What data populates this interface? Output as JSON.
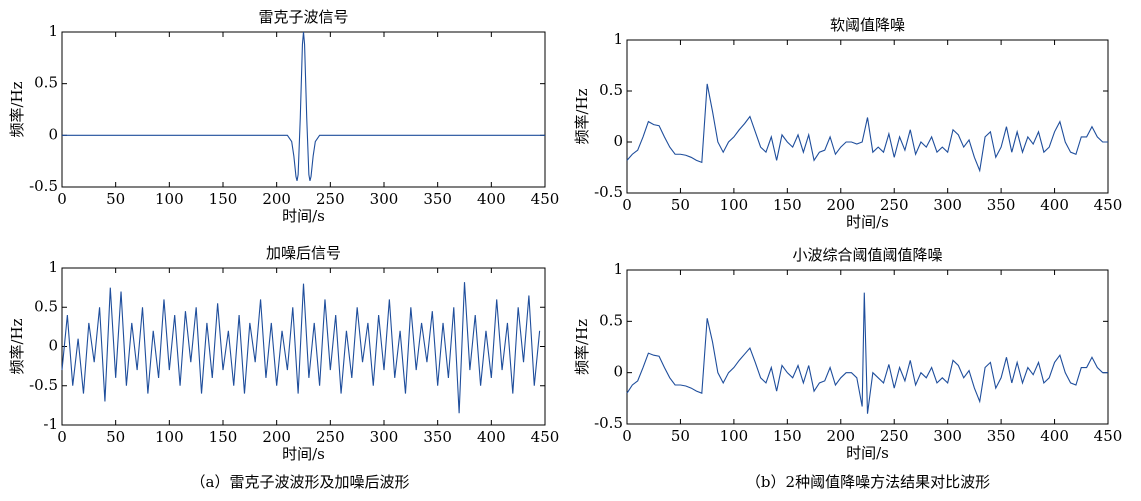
{
  "chart_data": [
    {
      "type": "line",
      "title": "雷克子波信号",
      "x_label": "时间/s",
      "y_label": "频率/Hz",
      "x": [
        0,
        200,
        210,
        214,
        216,
        218,
        219,
        220,
        222,
        224,
        225,
        226,
        228,
        230,
        231,
        232,
        234,
        236,
        240,
        250,
        450
      ],
      "series": [
        {
          "color": "#1f4e9c",
          "values": [
            0,
            0,
            0,
            -0.06,
            -0.2,
            -0.4,
            -0.44,
            -0.38,
            0.17,
            0.88,
            1,
            0.88,
            0.17,
            -0.38,
            -0.44,
            -0.4,
            -0.2,
            -0.06,
            0,
            0,
            0
          ]
        }
      ],
      "xlim": [
        0,
        450
      ],
      "ylim": [
        -0.5,
        1
      ],
      "xticks": [
        0,
        50,
        100,
        150,
        200,
        250,
        300,
        350,
        400,
        450
      ],
      "yticks": [
        -0.5,
        0,
        0.5,
        1
      ]
    },
    {
      "type": "line",
      "title": "加噪后信号",
      "x_label": "时间/s",
      "y_label": "频率/Hz",
      "x": [
        0,
        5,
        10,
        15,
        20,
        25,
        30,
        35,
        40,
        45,
        50,
        55,
        60,
        65,
        70,
        75,
        80,
        85,
        90,
        95,
        100,
        105,
        110,
        115,
        120,
        125,
        130,
        135,
        140,
        145,
        150,
        155,
        160,
        165,
        170,
        175,
        180,
        185,
        190,
        195,
        200,
        205,
        210,
        215,
        220,
        225,
        230,
        235,
        240,
        245,
        250,
        255,
        260,
        265,
        270,
        275,
        280,
        285,
        290,
        295,
        300,
        305,
        310,
        315,
        320,
        325,
        330,
        335,
        340,
        345,
        350,
        355,
        360,
        365,
        370,
        375,
        380,
        385,
        390,
        395,
        400,
        405,
        410,
        415,
        420,
        425,
        430,
        435,
        440,
        445
      ],
      "series": [
        {
          "color": "#1f4e9c",
          "values": [
            -0.3,
            0.4,
            -0.5,
            0.1,
            -0.6,
            0.3,
            -0.2,
            0.5,
            -0.7,
            0.75,
            -0.4,
            0.7,
            -0.5,
            0.3,
            -0.3,
            0.5,
            -0.6,
            0.2,
            -0.4,
            0.6,
            -0.3,
            0.4,
            -0.5,
            0.45,
            -0.2,
            0.5,
            -0.6,
            0.3,
            -0.4,
            0.55,
            -0.3,
            0.2,
            -0.5,
            0.4,
            -0.6,
            0.3,
            -0.2,
            0.6,
            -0.4,
            0.3,
            -0.5,
            0.2,
            -0.3,
            0.5,
            -0.6,
            0.8,
            -0.4,
            0.3,
            -0.5,
            0.6,
            -0.3,
            0.4,
            -0.6,
            0.2,
            -0.4,
            0.5,
            -0.2,
            0.3,
            -0.5,
            0.4,
            -0.3,
            0.6,
            -0.4,
            0.2,
            -0.6,
            0.5,
            -0.3,
            0.3,
            -0.2,
            0.45,
            -0.5,
            0.3,
            -0.4,
            0.5,
            -0.85,
            0.82,
            -0.3,
            0.4,
            -0.5,
            0.2,
            -0.4,
            0.6,
            -0.3,
            0.3,
            -0.6,
            0.5,
            -0.2,
            0.65,
            -0.5,
            0.2
          ]
        }
      ],
      "xlim": [
        0,
        450
      ],
      "ylim": [
        -1,
        1
      ],
      "xticks": [
        0,
        50,
        100,
        150,
        200,
        250,
        300,
        350,
        400,
        450
      ],
      "yticks": [
        -1,
        -0.5,
        0,
        0.5,
        1
      ]
    },
    {
      "type": "line",
      "title": "软阈值降噪",
      "x_label": "时间/s",
      "y_label": "频率/Hz",
      "x": [
        0,
        5,
        10,
        15,
        20,
        25,
        30,
        35,
        40,
        45,
        50,
        55,
        60,
        65,
        70,
        75,
        80,
        85,
        90,
        95,
        100,
        105,
        110,
        115,
        120,
        125,
        130,
        135,
        140,
        145,
        150,
        155,
        160,
        165,
        170,
        175,
        180,
        185,
        190,
        195,
        200,
        205,
        210,
        215,
        220,
        225,
        230,
        235,
        240,
        245,
        250,
        255,
        260,
        265,
        270,
        275,
        280,
        285,
        290,
        295,
        300,
        305,
        310,
        315,
        320,
        325,
        330,
        335,
        340,
        345,
        350,
        355,
        360,
        365,
        370,
        375,
        380,
        385,
        390,
        395,
        400,
        405,
        410,
        415,
        420,
        425,
        430,
        435,
        440,
        445,
        450
      ],
      "series": [
        {
          "color": "#1f4e9c",
          "values": [
            -0.18,
            -0.12,
            -0.08,
            0.05,
            0.2,
            0.17,
            0.16,
            0.05,
            -0.05,
            -0.12,
            -0.12,
            -0.13,
            -0.15,
            -0.18,
            -0.2,
            0.57,
            0.3,
            0,
            -0.1,
            0,
            0.05,
            0.12,
            0.18,
            0.25,
            0.1,
            -0.05,
            -0.1,
            0.05,
            -0.18,
            0.07,
            0,
            -0.05,
            0.07,
            -0.1,
            0.07,
            -0.18,
            -0.1,
            -0.08,
            0.05,
            -0.12,
            -0.05,
            0,
            0,
            -0.02,
            0,
            0.24,
            -0.1,
            -0.05,
            -0.1,
            0.08,
            -0.15,
            0.05,
            -0.08,
            0.12,
            -0.12,
            0,
            -0.05,
            0.05,
            -0.1,
            -0.05,
            -0.1,
            0.12,
            0.07,
            -0.05,
            0.02,
            -0.15,
            -0.28,
            0.05,
            0.1,
            -0.15,
            -0.05,
            0.15,
            -0.1,
            0.1,
            -0.1,
            0.05,
            -0.02,
            0.1,
            -0.1,
            -0.05,
            0.1,
            0.2,
            0,
            -0.1,
            -0.12,
            0.05,
            0.05,
            0.15,
            0.05,
            0,
            0
          ]
        }
      ],
      "xlim": [
        0,
        450
      ],
      "ylim": [
        -0.5,
        1
      ],
      "xticks": [
        0,
        50,
        100,
        150,
        200,
        250,
        300,
        350,
        400,
        450
      ],
      "yticks": [
        -0.5,
        0,
        0.5,
        1
      ]
    },
    {
      "type": "line",
      "title": "小波综合阈值阈值降噪",
      "x_label": "时间/s",
      "y_label": "频率/Hz",
      "x": [
        0,
        5,
        10,
        15,
        20,
        25,
        30,
        35,
        40,
        45,
        50,
        55,
        60,
        65,
        70,
        75,
        80,
        85,
        90,
        95,
        100,
        105,
        110,
        115,
        120,
        125,
        130,
        135,
        140,
        145,
        150,
        155,
        160,
        165,
        170,
        175,
        180,
        185,
        190,
        195,
        200,
        205,
        210,
        215,
        220,
        222,
        225,
        230,
        235,
        240,
        245,
        250,
        255,
        260,
        265,
        270,
        275,
        280,
        285,
        290,
        295,
        300,
        305,
        310,
        315,
        320,
        325,
        330,
        335,
        340,
        345,
        350,
        355,
        360,
        365,
        370,
        375,
        380,
        385,
        390,
        395,
        400,
        405,
        410,
        415,
        420,
        425,
        430,
        435,
        440,
        445,
        450
      ],
      "series": [
        {
          "color": "#1f4e9c",
          "values": [
            -0.2,
            -0.12,
            -0.08,
            0.05,
            0.19,
            0.17,
            0.16,
            0.05,
            -0.05,
            -0.12,
            -0.12,
            -0.13,
            -0.15,
            -0.18,
            -0.2,
            0.53,
            0.3,
            0,
            -0.1,
            0,
            0.05,
            0.12,
            0.18,
            0.24,
            0.1,
            -0.05,
            -0.1,
            0.05,
            -0.18,
            0.07,
            0,
            -0.05,
            0.07,
            -0.1,
            0.07,
            -0.18,
            -0.1,
            -0.08,
            0.05,
            -0.12,
            -0.05,
            0,
            0,
            -0.05,
            -0.33,
            0.78,
            -0.4,
            0,
            -0.05,
            -0.1,
            0.08,
            -0.15,
            0.05,
            -0.08,
            0.12,
            -0.12,
            0,
            -0.05,
            0.05,
            -0.1,
            -0.05,
            -0.1,
            0.12,
            0.07,
            -0.05,
            0.02,
            -0.15,
            -0.28,
            0.05,
            0.1,
            -0.15,
            -0.05,
            0.15,
            -0.1,
            0.1,
            -0.1,
            0.05,
            -0.02,
            0.1,
            -0.1,
            -0.05,
            0.1,
            0.17,
            0,
            -0.1,
            -0.12,
            0.05,
            0.05,
            0.15,
            0.05,
            0,
            0
          ]
        }
      ],
      "xlim": [
        0,
        450
      ],
      "ylim": [
        -0.5,
        1
      ],
      "xticks": [
        0,
        50,
        100,
        150,
        200,
        250,
        300,
        350,
        400,
        450
      ],
      "yticks": [
        -0.5,
        0,
        0.5,
        1
      ]
    }
  ],
  "captions": [
    "（a）雷克子波波形及加噪后波形",
    "（b）2种阈值降噪方法结果对比波形"
  ]
}
